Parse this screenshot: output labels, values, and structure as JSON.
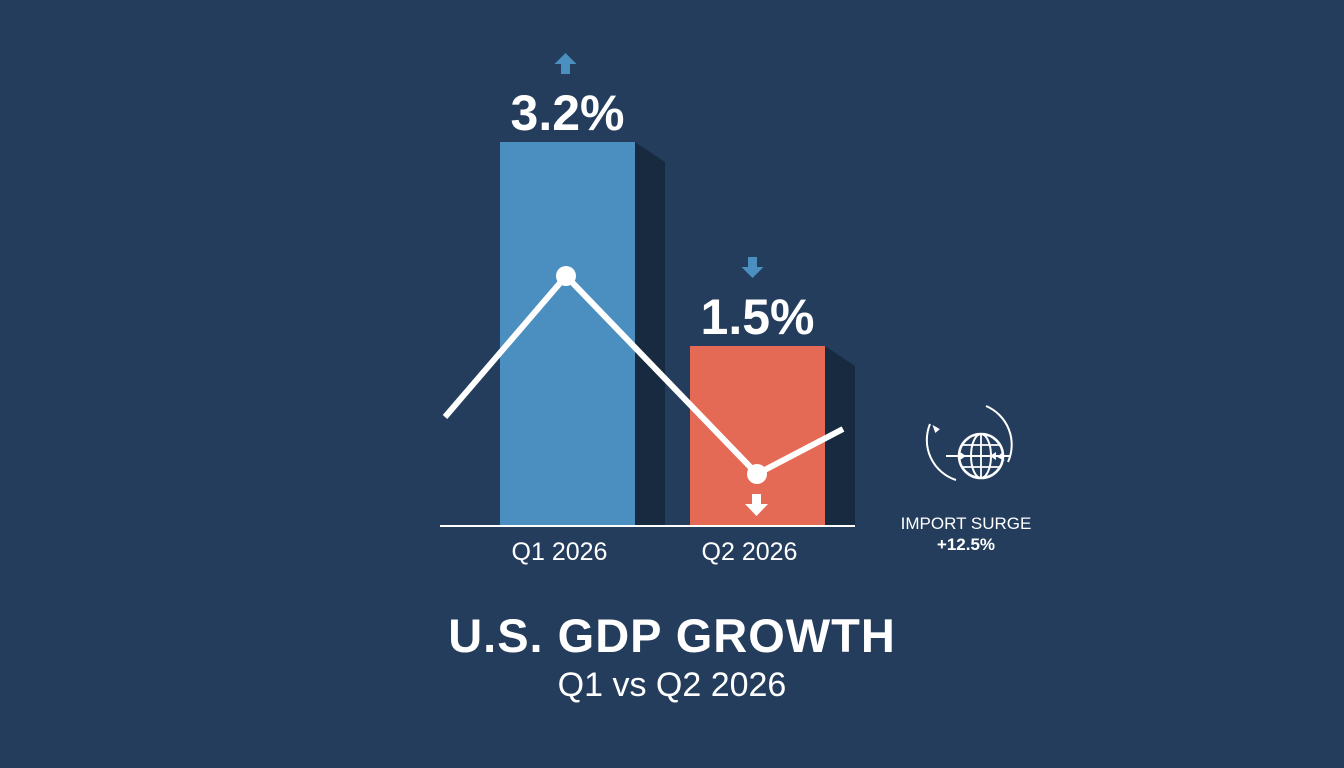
{
  "chart_data": {
    "type": "bar",
    "categories": [
      "Q1 2026",
      "Q2 2026"
    ],
    "values": [
      3.2,
      1.5
    ],
    "value_labels": [
      "3.2%",
      "1.5%"
    ],
    "bar_colors": [
      "#4a8fc0",
      "#e56a55"
    ],
    "trend_directions": [
      "up",
      "down"
    ],
    "trend_line": true,
    "title": "U.S. GDP GROWTH",
    "subtitle": "Q1 vs Q2 2026",
    "xlabel": "",
    "ylabel": "",
    "ylim": [
      0,
      3.5
    ],
    "grid": false
  },
  "annotation": {
    "label": "IMPORT SURGE",
    "value": "+12.5%",
    "icon": "globe-icon"
  },
  "colors": {
    "background": "#243d5c",
    "bar_shadow": "#172a40",
    "arrow": "#4a8fc0",
    "line": "#ffffff"
  }
}
